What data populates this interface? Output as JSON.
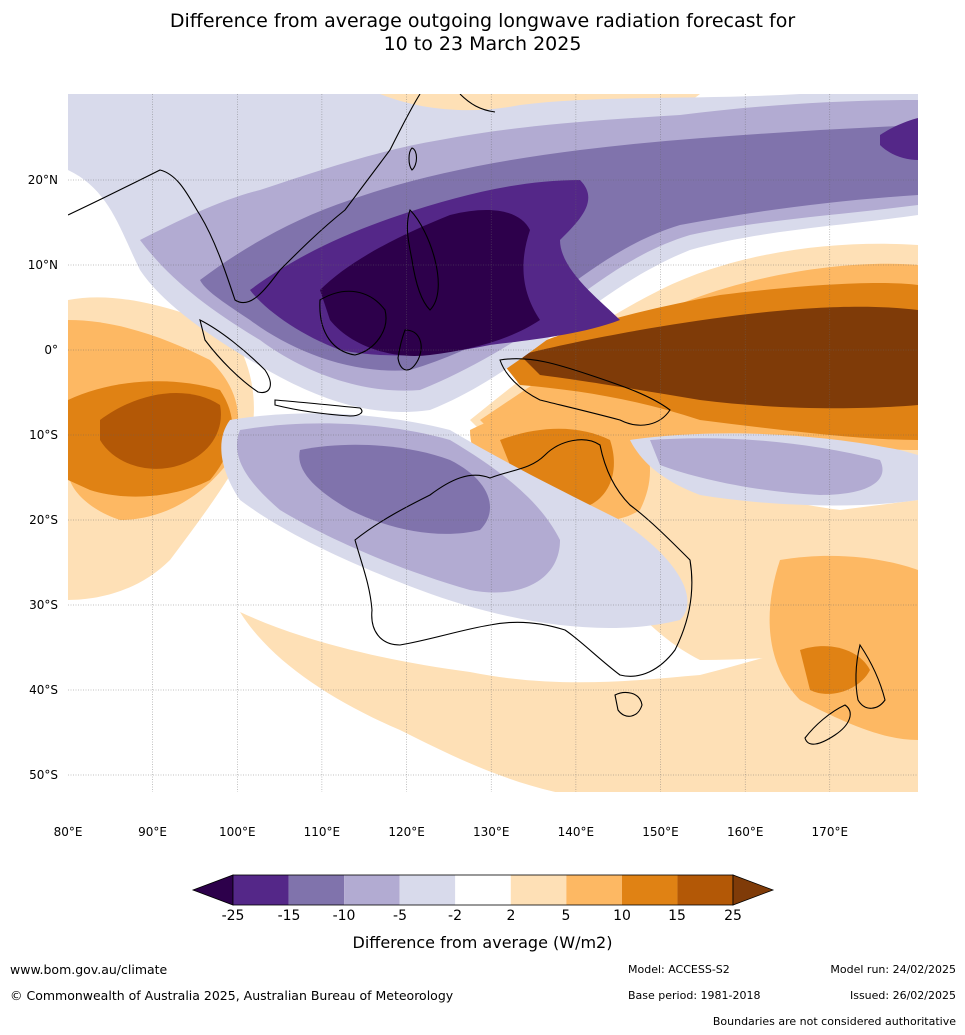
{
  "title": {
    "line1": "Difference from average outgoing longwave radiation forecast for",
    "line2": "10 to 23 March 2025"
  },
  "map": {
    "lat_labels": [
      "20°N",
      "10°N",
      "0°",
      "10°S",
      "20°S",
      "30°S",
      "40°S",
      "50°S"
    ],
    "lon_labels": [
      "80°E",
      "90°E",
      "100°E",
      "110°E",
      "120°E",
      "130°E",
      "140°E",
      "150°E",
      "160°E",
      "170°E"
    ]
  },
  "colorbar": {
    "title": "Difference from average (W/m2)",
    "ticks": [
      "-25",
      "-15",
      "-10",
      "-5",
      "-2",
      "2",
      "5",
      "10",
      "15",
      "25"
    ],
    "colors": {
      "below": "#2d004b",
      "bins": [
        "#542788",
        "#8073ac",
        "#b2abd2",
        "#d8daeb",
        "#ffffff",
        "#fee0b6",
        "#fdb863",
        "#e08214",
        "#b35806"
      ],
      "above": "#7f3b08"
    }
  },
  "footer": {
    "website": "www.bom.gov.au/climate",
    "copyright": "© Commonwealth of Australia 2025, Australian Bureau of Meteorology",
    "model": "Model: ACCESS-S2",
    "base_period": "Base period: 1981-2018",
    "model_run": "Model run: 24/02/2025",
    "issued": "Issued: 26/02/2025",
    "disclaimer": "Boundaries are not considered authoritative"
  }
}
